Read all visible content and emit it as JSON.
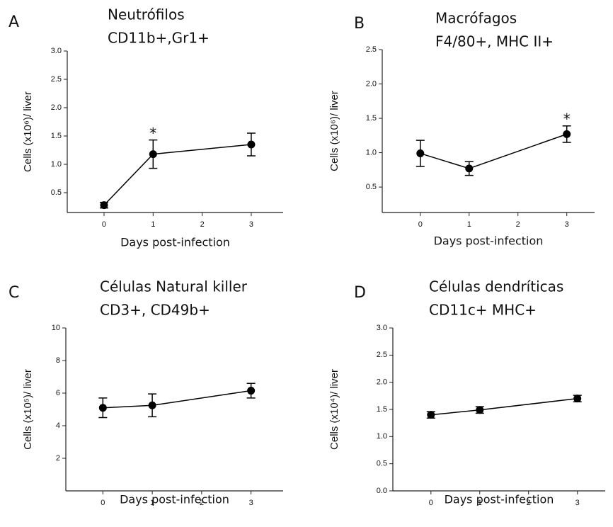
{
  "chart_data": [
    {
      "type": "line",
      "panel": "A",
      "title": [
        "Neutrófilos",
        "CD11b+,Gr1+"
      ],
      "ylabel": "Cells (x10⁶)/ liver",
      "xlabel": "Days post-infection",
      "x": [
        0,
        1,
        3
      ],
      "values": [
        0.28,
        1.18,
        1.35
      ],
      "errors": [
        0.05,
        0.25,
        0.2
      ],
      "color": "#000000",
      "xlim": [
        -0.75,
        3.65
      ],
      "xticks": [
        0,
        1,
        2,
        3
      ],
      "ylim": [
        0.15,
        3
      ],
      "yticks": [
        {
          "value": 0.5,
          "label": "0.5"
        },
        {
          "value": 1,
          "label": "1.0"
        },
        {
          "value": 1.5,
          "label": "1.5"
        },
        {
          "value": 2,
          "label": "2.0"
        },
        {
          "value": 2.5,
          "label": "2.5"
        },
        {
          "value": 3,
          "label": "3.0"
        }
      ],
      "annotations": [
        {
          "x": 1,
          "text": "*"
        }
      ]
    },
    {
      "type": "line",
      "panel": "B",
      "title": [
        "Macrófagos",
        "F4/80+, MHC II+"
      ],
      "ylabel": "Cells (x10⁶)/ liver",
      "xlabel": "Days post-infection",
      "x": [
        0,
        1,
        3
      ],
      "values": [
        0.99,
        0.77,
        1.27
      ],
      "errors": [
        0.19,
        0.1,
        0.12
      ],
      "color": "#000000",
      "xlim": [
        -0.78,
        3.57
      ],
      "xticks": [
        0,
        1,
        2,
        3
      ],
      "ylim": [
        0.13,
        2.5
      ],
      "yticks": [
        {
          "value": 0.5,
          "label": "0.5"
        },
        {
          "value": 1,
          "label": "1.0"
        },
        {
          "value": 1.5,
          "label": "1.5"
        },
        {
          "value": 2,
          "label": "2.0"
        },
        {
          "value": 2.5,
          "label": "2.5"
        }
      ],
      "annotations": [
        {
          "x": 3,
          "text": "*"
        }
      ]
    },
    {
      "type": "line",
      "panel": "C",
      "title": [
        "Células Natural killer",
        "CD3+, CD49b+"
      ],
      "ylabel": "Cells (x10⁵)/ liver",
      "xlabel": "Days post-infection",
      "x": [
        0,
        1,
        3
      ],
      "values": [
        5.1,
        5.25,
        6.15
      ],
      "errors": [
        0.6,
        0.7,
        0.45
      ],
      "color": "#000000",
      "xlim": [
        -0.75,
        3.65
      ],
      "xticks": [
        0,
        1,
        2,
        3
      ],
      "ylim": [
        0,
        10
      ],
      "yticks": [
        2,
        4,
        6,
        8,
        10
      ],
      "annotations": []
    },
    {
      "type": "line",
      "panel": "D",
      "title": [
        "Células dendríticas",
        "CD11c+ MHC+"
      ],
      "ylabel": "Cells (x10⁴)/ liver",
      "xlabel": "Days post-infection",
      "x": [
        0,
        1,
        3
      ],
      "values": [
        1.4,
        1.49,
        1.7
      ],
      "errors": [
        0.06,
        0.06,
        0.06
      ],
      "color": "#000000",
      "xlim": [
        -0.78,
        3.57
      ],
      "xticks": [
        0,
        1,
        2,
        3
      ],
      "ylim": [
        0,
        3
      ],
      "yticks": [
        {
          "value": 0,
          "label": "0.0"
        },
        {
          "value": 0.5,
          "label": "0.5"
        },
        {
          "value": 1,
          "label": "1.0"
        },
        {
          "value": 1.5,
          "label": "1.5"
        },
        {
          "value": 2,
          "label": "2.0"
        },
        {
          "value": 2.5,
          "label": "2.5"
        },
        {
          "value": 3,
          "label": "3.0"
        }
      ],
      "annotations": []
    }
  ]
}
